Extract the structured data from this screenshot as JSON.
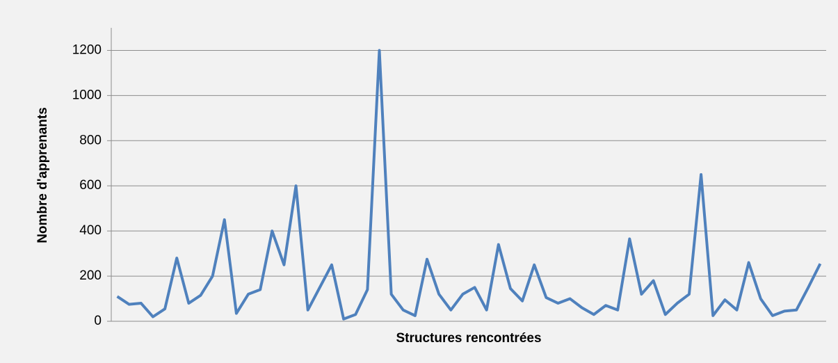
{
  "chart_data": {
    "type": "line",
    "y_label": "Nombre d'apprenants",
    "x_label": "Structures rencontrées",
    "categories": [
      null,
      null,
      null,
      null,
      null,
      null,
      null,
      null,
      null,
      null,
      null,
      null,
      null,
      null,
      null,
      null,
      null,
      null,
      null,
      null,
      null,
      null,
      null,
      null,
      null,
      null,
      null,
      null,
      null,
      null,
      null,
      null,
      null,
      null,
      null,
      null,
      null,
      null,
      null,
      null,
      null,
      null,
      null,
      null,
      null,
      null,
      null,
      null,
      null,
      null,
      null,
      null,
      null,
      null,
      null,
      null,
      null,
      null,
      null,
      null
    ],
    "values": [
      110,
      75,
      80,
      20,
      55,
      280,
      80,
      115,
      200,
      450,
      35,
      120,
      140,
      400,
      250,
      600,
      50,
      150,
      250,
      10,
      30,
      140,
      1200,
      120,
      50,
      25,
      275,
      120,
      50,
      120,
      150,
      50,
      340,
      145,
      90,
      250,
      105,
      80,
      100,
      60,
      30,
      70,
      50,
      365,
      120,
      180,
      30,
      80,
      120,
      650,
      25,
      95,
      50,
      260,
      100,
      25,
      45,
      50,
      150,
      255
    ],
    "color": "#4f81bd",
    "ylim": [
      0,
      1300
    ],
    "yticks": [
      0,
      200,
      400,
      600,
      800,
      1000,
      1200
    ],
    "grid": true
  }
}
